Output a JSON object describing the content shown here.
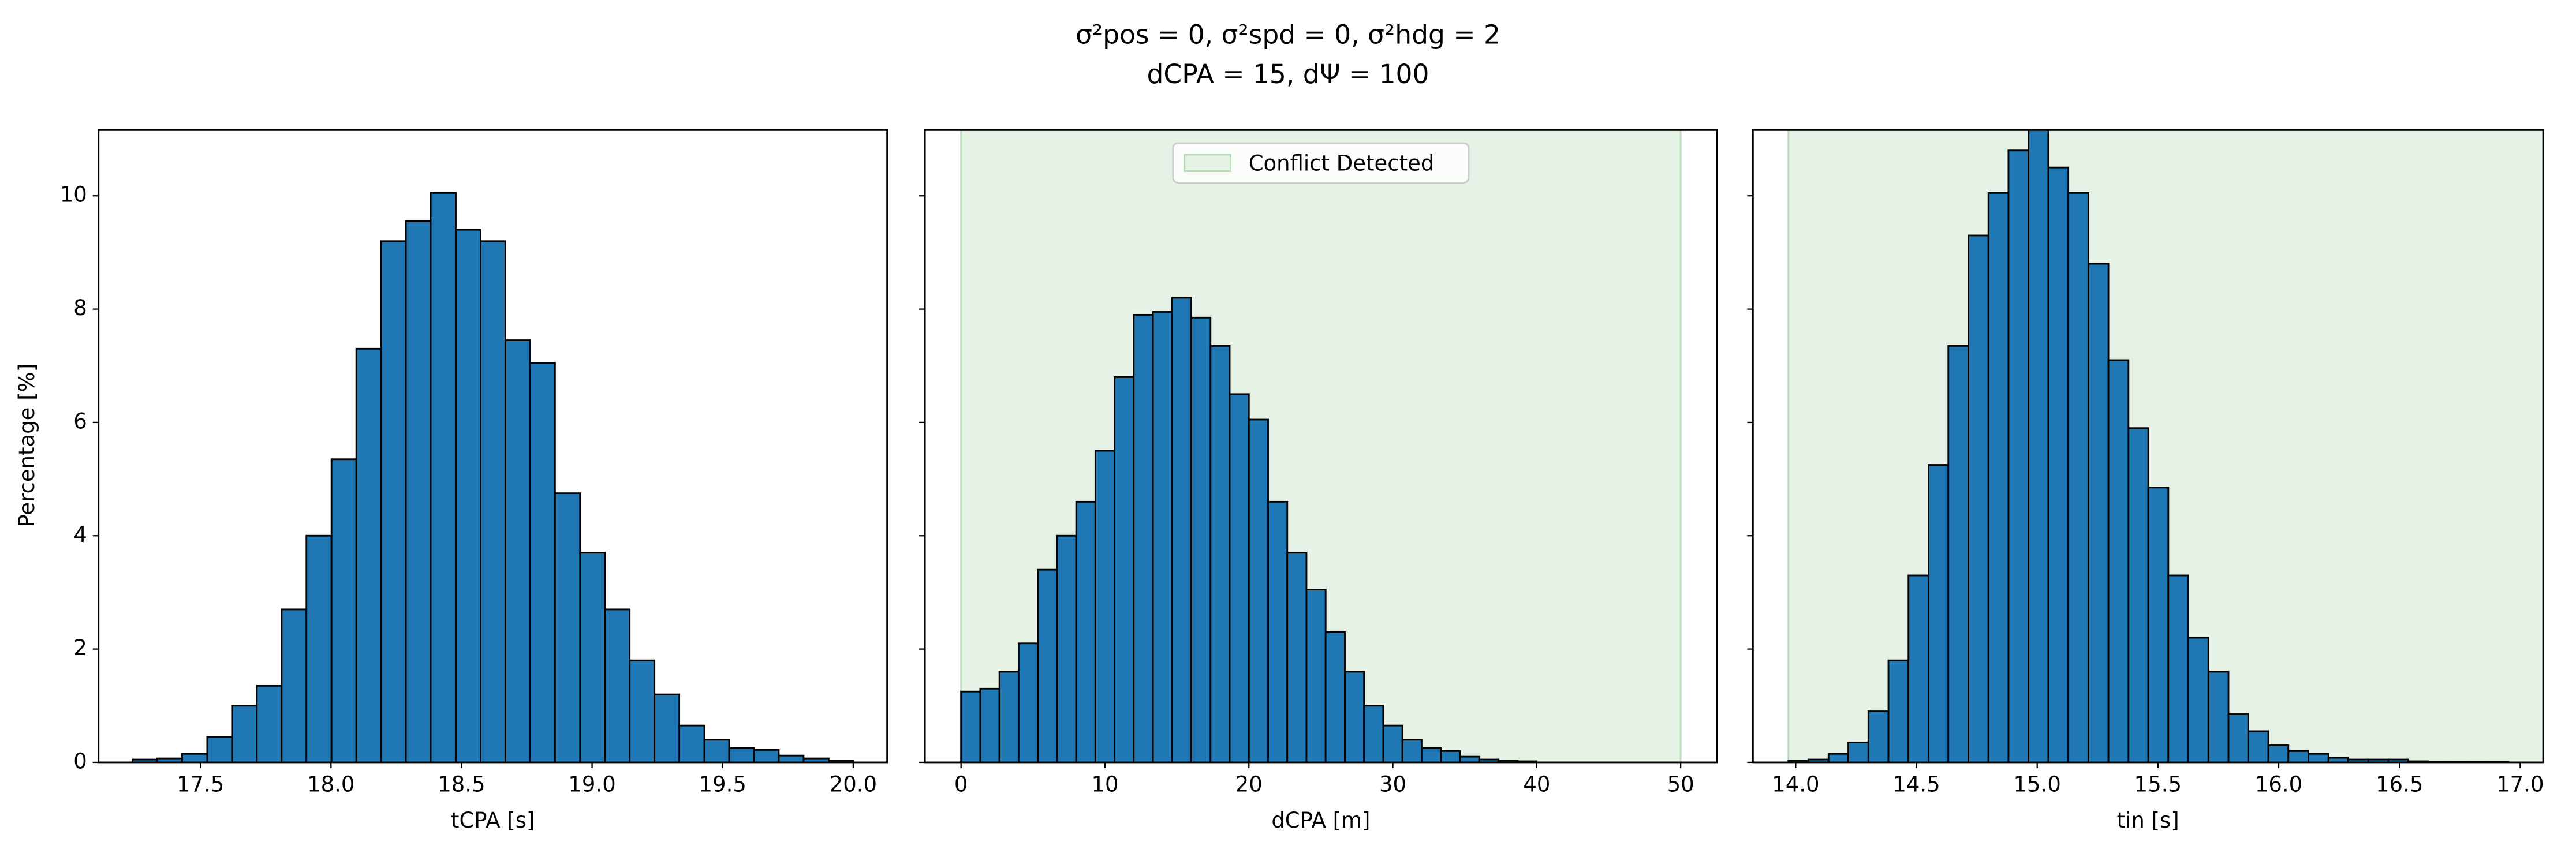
{
  "title": [
    "σ²pos = 0, σ²spd = 0, σ²hdg = 2",
    "dCPA = 15, dΨ = 100"
  ],
  "ylabel": "Percentage [%]",
  "chart_data": [
    {
      "type": "histogram",
      "xlabel": "tCPA [s]",
      "color": "#1f77b4",
      "edgecolor": "#000000",
      "bins": [
        17.24,
        17.335,
        17.43,
        17.526,
        17.621,
        17.716,
        17.811,
        17.906,
        18.002,
        18.097,
        18.192,
        18.287,
        18.382,
        18.478,
        18.573,
        18.668,
        18.763,
        18.858,
        18.954,
        19.049,
        19.144,
        19.239,
        19.334,
        19.43,
        19.525,
        19.62,
        19.715,
        19.81,
        19.906,
        20.001
      ],
      "counts": [
        0.05,
        0.07,
        0.15,
        0.45,
        1.0,
        1.35,
        2.7,
        4.0,
        5.35,
        7.3,
        9.2,
        9.55,
        10.05,
        9.4,
        9.2,
        7.45,
        7.05,
        4.75,
        3.7,
        2.7,
        1.8,
        1.2,
        0.65,
        0.4,
        0.25,
        0.22,
        0.12,
        0.07,
        0.03
      ],
      "xlim": [
        17.11,
        20.13
      ],
      "ylim": [
        0,
        11.16
      ],
      "xticks": [
        17.5,
        {
          "value": 18,
          "label": "18.0"
        },
        18.5,
        {
          "value": 19,
          "label": "19.0"
        },
        19.5,
        {
          "value": 20,
          "label": "20.0"
        }
      ],
      "yticks": [
        0,
        2,
        4,
        6,
        8,
        10
      ]
    },
    {
      "type": "histogram",
      "xlabel": "dCPA [m]",
      "color": "#1f77b4",
      "edgecolor": "#000000",
      "bins": [
        0,
        1.333,
        2.667,
        4,
        5.333,
        6.667,
        8,
        9.333,
        10.667,
        12,
        13.333,
        14.667,
        16,
        17.333,
        18.667,
        20,
        21.333,
        22.667,
        24,
        25.333,
        26.667,
        28,
        29.333,
        30.667,
        32,
        33.333,
        34.667,
        36,
        37.333,
        38.667,
        40
      ],
      "counts": [
        1.25,
        1.3,
        1.6,
        2.1,
        3.4,
        4.0,
        4.6,
        5.5,
        6.8,
        7.9,
        7.95,
        8.2,
        7.85,
        7.35,
        6.5,
        6.05,
        4.6,
        3.7,
        3.05,
        2.3,
        1.6,
        1.0,
        0.65,
        0.4,
        0.25,
        0.2,
        0.1,
        0.05,
        0.03,
        0.02
      ],
      "xlim": [
        -2.51,
        52.51
      ],
      "ylim": [
        0,
        11.16
      ],
      "xticks": [
        0,
        10,
        20,
        30,
        40,
        50
      ],
      "yticks": [
        0,
        2,
        4,
        6,
        8,
        10
      ],
      "sharey": true,
      "span": [
        0,
        50
      ],
      "span_color": "#e5f2e5",
      "span_name": "Conflict Detected",
      "legend": "upper center"
    },
    {
      "type": "histogram",
      "xlabel": "tin [s]",
      "color": "#1f77b4",
      "edgecolor": "#000000",
      "bins": [
        13.97,
        14.053,
        14.136,
        14.218,
        14.301,
        14.384,
        14.467,
        14.55,
        14.632,
        14.715,
        14.798,
        14.881,
        14.964,
        15.046,
        15.129,
        15.212,
        15.295,
        15.378,
        15.46,
        15.543,
        15.626,
        15.709,
        15.792,
        15.874,
        15.957,
        16.04,
        16.123,
        16.206,
        16.288,
        16.371,
        16.454,
        16.537,
        16.62,
        16.702,
        16.785,
        16.868,
        16.951
      ],
      "counts": [
        0.03,
        0.05,
        0.15,
        0.35,
        0.9,
        1.8,
        3.3,
        5.25,
        7.35,
        9.3,
        10.05,
        10.8,
        11.3,
        10.5,
        10.05,
        8.8,
        7.1,
        5.9,
        4.85,
        3.3,
        2.2,
        1.6,
        0.85,
        0.55,
        0.3,
        0.2,
        0.15,
        0.08,
        0.05,
        0.05,
        0.05,
        0.02,
        0.01,
        0.01,
        0.01,
        0.01
      ],
      "xlim": [
        13.823,
        17.095
      ],
      "ylim": [
        0,
        11.16
      ],
      "xticks": [
        {
          "value": 14,
          "label": "14.0"
        },
        14.5,
        {
          "value": 15,
          "label": "15.0"
        },
        15.5,
        {
          "value": 16,
          "label": "16.0"
        },
        16.5,
        {
          "value": 17,
          "label": "17.0"
        }
      ],
      "yticks": [
        0,
        2,
        4,
        6,
        8,
        10
      ],
      "sharey": true,
      "span": [
        13.97,
        50
      ],
      "span_color": "#e5f2e5"
    }
  ]
}
